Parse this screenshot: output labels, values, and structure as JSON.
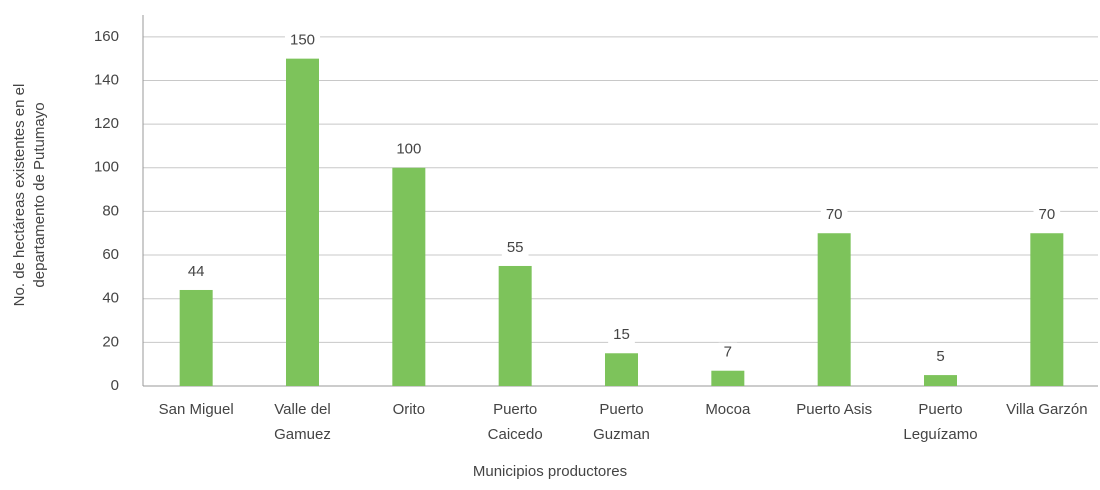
{
  "chart_data": {
    "type": "bar",
    "x_label": "Municipios productores",
    "y_label": "No. de hectáreas existentes en el departamento de Putumayo",
    "categories": [
      "San Miguel",
      "Valle del Gamuez",
      "Orito",
      "Puerto Caicedo",
      "Puerto Guzman",
      "Mocoa",
      "Puerto Asis",
      "Puerto Leguízamo",
      "Villa Garzón"
    ],
    "values": [
      44,
      150,
      100,
      55,
      15,
      7,
      70,
      5,
      70
    ],
    "color": "#7dc35b",
    "ylim": [
      0,
      170
    ],
    "yticks": [
      0,
      20,
      40,
      60,
      80,
      100,
      120,
      140,
      160
    ],
    "grid": true
  }
}
